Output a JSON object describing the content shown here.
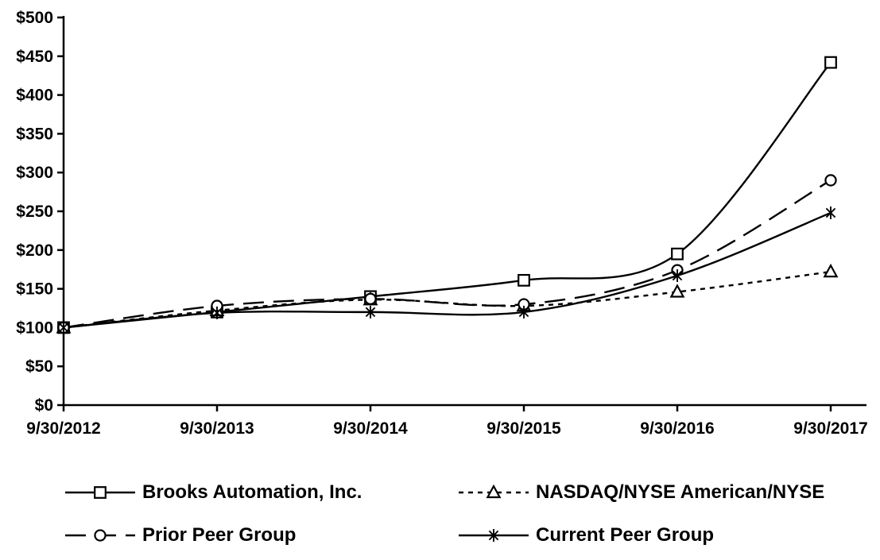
{
  "chart_data": {
    "type": "line",
    "title": "",
    "xlabel": "",
    "ylabel": "",
    "x_categories": [
      "9/30/2012",
      "9/30/2013",
      "9/30/2014",
      "9/30/2015",
      "9/30/2016",
      "9/30/2017"
    ],
    "y_ticks": [
      "$0",
      "$50",
      "$100",
      "$150",
      "$200",
      "$250",
      "$300",
      "$350",
      "$400",
      "$450",
      "$500"
    ],
    "ylim": [
      0,
      500
    ],
    "ytick_step": 50,
    "grid": false,
    "legend_position": "bottom",
    "color": "#000000",
    "background": "#ffffff",
    "series": [
      {
        "name": "Brooks Automation, Inc.",
        "marker": "square",
        "line": "solid",
        "values": [
          100,
          120,
          140,
          161,
          195,
          442
        ]
      },
      {
        "name": "NASDAQ/NYSE American/NYSE",
        "marker": "triangle",
        "line": "short-dash",
        "values": [
          100,
          122,
          136,
          128,
          146,
          172
        ]
      },
      {
        "name": "Prior Peer Group",
        "marker": "circle",
        "line": "long-dash",
        "values": [
          100,
          128,
          137,
          130,
          174,
          290
        ]
      },
      {
        "name": "Current Peer Group",
        "marker": "asterisk",
        "line": "solid",
        "values": [
          100,
          119,
          120,
          120,
          167,
          248
        ]
      }
    ]
  }
}
